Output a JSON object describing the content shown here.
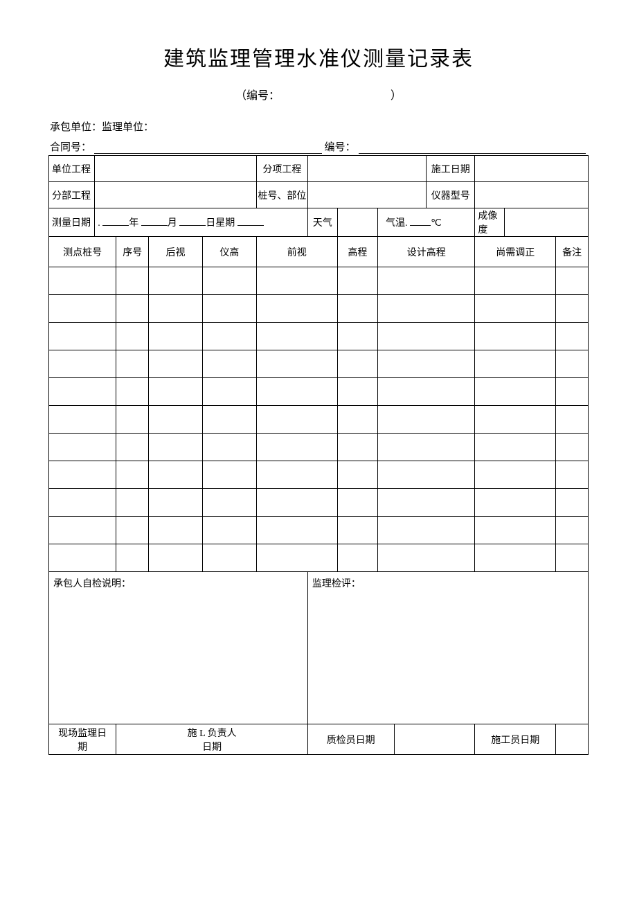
{
  "title": "建筑监理管理水准仪测量记录表",
  "subtitle_prefix": "（编号：",
  "subtitle_suffix": "）",
  "units_prefix": "承包单位：",
  "units_mid": "监理单位：",
  "contract_label": "合同号：",
  "serial_label": "编号：",
  "header_rows": {
    "unit_project": "单位工程",
    "sub_project": "分项工程",
    "construction_date": "施工日期",
    "division_project": "分部工程",
    "pile_location": "桩号、部位",
    "instrument_model": "仪器型号",
    "measure_date": "测量日期",
    "date_year": "年",
    "date_month": "月",
    "date_day": "日星期",
    "weather": "天气",
    "temperature": "气温.",
    "celsius": "℃",
    "imaging": "成像度"
  },
  "columns": {
    "pile": "测点桩号",
    "seq": "序号",
    "back": "后视",
    "height": "仪高",
    "front": "前视",
    "elev": "高程",
    "design": "设计高程",
    "adjust": "尚需调正",
    "remark": "备注"
  },
  "data_row_count": 11,
  "self_check_label": "承包人自检说明：",
  "supervise_label": "监理检评：",
  "sign": {
    "site_supervisor": "现场监理日\n期",
    "construction_manager": "施 L 负责人\n日期",
    "qc_date": "质检员日期",
    "builder_date": "施工员日期"
  },
  "style": {
    "background": "#ffffff",
    "text_color": "#000000",
    "border_color": "#000000",
    "title_fontsize": 30,
    "body_fontsize": 15,
    "cell_fontsize": 14
  }
}
